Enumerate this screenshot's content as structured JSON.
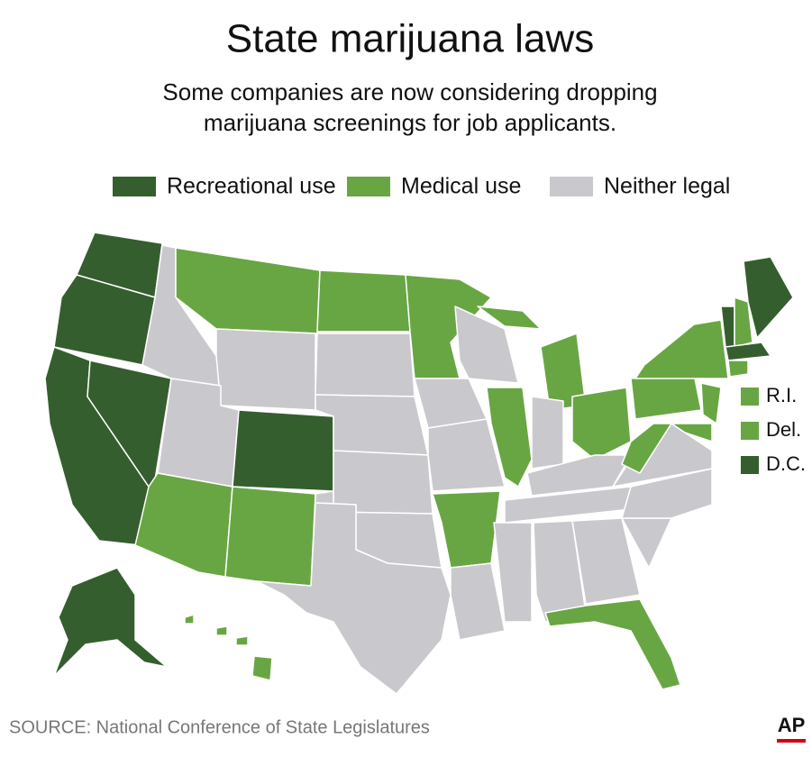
{
  "header": {
    "title": "State marijuana laws",
    "subtitle": [
      "Some companies are now considering dropping",
      "marijuana screenings for job applicants."
    ]
  },
  "legend": [
    {
      "label": "Recreational use",
      "color": "#355e2e"
    },
    {
      "label": "Medical use",
      "color": "#68a643"
    },
    {
      "label": "Neither legal",
      "color": "#c9c9cd"
    }
  ],
  "small_states": [
    {
      "label": "R.I.",
      "legend": 1
    },
    {
      "label": "Del.",
      "legend": 1
    },
    {
      "label": "D.C.",
      "legend": 0
    }
  ],
  "footer": {
    "source": "SOURCE: National Conference of State Legislatures",
    "logo": "AP"
  }
}
